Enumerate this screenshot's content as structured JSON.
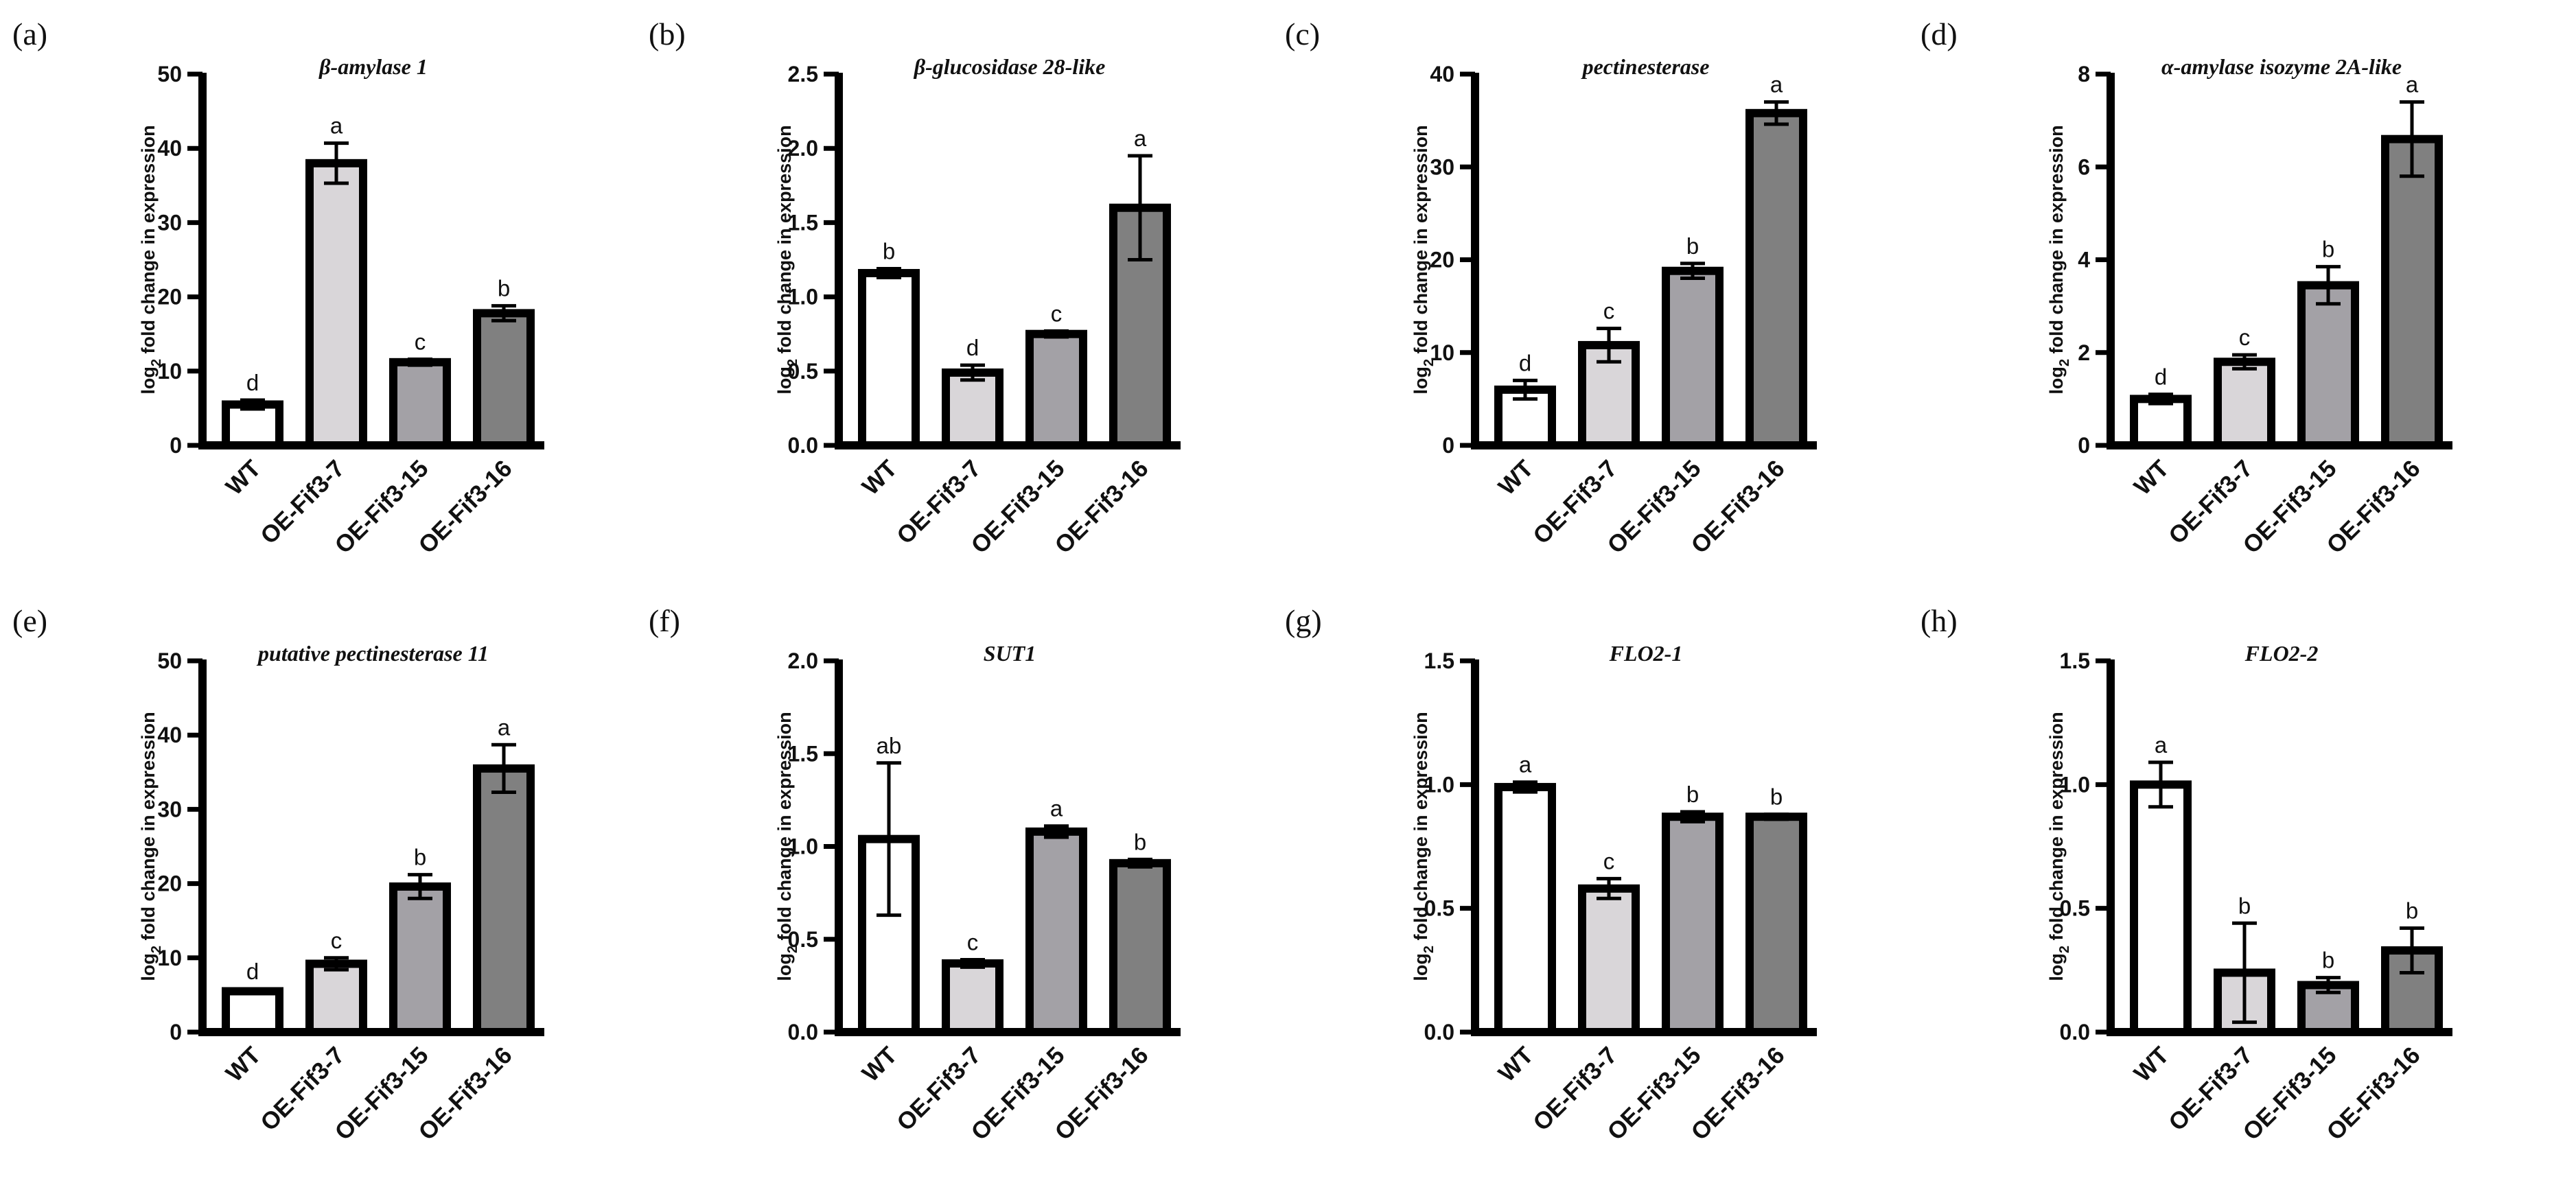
{
  "figure": {
    "panel_style": {
      "bar_colors": [
        "#ffffff",
        "#d9d6d9",
        "#a3a1a6",
        "#808080"
      ],
      "stroke": "#000000"
    },
    "y_axis_label": {
      "prefix": "log",
      "subscript": "2",
      "suffix": " fold change in expression"
    }
  },
  "chart_data": [
    {
      "panel": "(a)",
      "type": "bar",
      "title": "β-amylase 1",
      "categories": [
        "WT",
        "OE-Fif3-7",
        "OE-Fif3-15",
        "OE-Fif3-16"
      ],
      "values": [
        5.5,
        38.0,
        11.2,
        17.8
      ],
      "errors": [
        0.6,
        2.7,
        0.4,
        1.0
      ],
      "significance": [
        "d",
        "a",
        "c",
        "b"
      ],
      "ylim": [
        0,
        50
      ],
      "yticks": [
        "0",
        "10",
        "20",
        "30",
        "40",
        "50"
      ],
      "ylabel": "log2 fold change in expression"
    },
    {
      "panel": "(b)",
      "type": "bar",
      "title": "β-glucosidase 28-like",
      "categories": [
        "WT",
        "OE-Fif3-7",
        "OE-Fif3-15",
        "OE-Fif3-16"
      ],
      "values": [
        1.16,
        0.49,
        0.75,
        1.6
      ],
      "errors": [
        0.03,
        0.05,
        0.02,
        0.35
      ],
      "significance": [
        "b",
        "d",
        "c",
        "a"
      ],
      "ylim": [
        0,
        2.5
      ],
      "yticks": [
        "0.0",
        "0.5",
        "1.0",
        "1.5",
        "2.0",
        "2.5"
      ],
      "ylabel": "log2 fold change in expression"
    },
    {
      "panel": "(c)",
      "type": "bar",
      "title": "pectinesterase",
      "categories": [
        "WT",
        "OE-Fif3-7",
        "OE-Fif3-15",
        "OE-Fif3-16"
      ],
      "values": [
        6.0,
        10.8,
        18.8,
        35.8
      ],
      "errors": [
        1.0,
        1.8,
        0.8,
        1.2
      ],
      "significance": [
        "d",
        "c",
        "b",
        "a"
      ],
      "ylim": [
        0,
        40
      ],
      "yticks": [
        "0",
        "10",
        "20",
        "30",
        "40"
      ],
      "ylabel": "log2 fold change in expression"
    },
    {
      "panel": "(d)",
      "type": "bar",
      "title": "α-amylase isozyme 2A-like",
      "categories": [
        "WT",
        "OE-Fif3-7",
        "OE-Fif3-15",
        "OE-Fif3-16"
      ],
      "values": [
        1.0,
        1.8,
        3.45,
        6.6
      ],
      "errors": [
        0.1,
        0.15,
        0.4,
        0.8
      ],
      "significance": [
        "d",
        "c",
        "b",
        "a"
      ],
      "ylim": [
        0,
        8
      ],
      "yticks": [
        "0",
        "2",
        "4",
        "6",
        "8"
      ],
      "ylabel": "log2 fold change in expression"
    },
    {
      "panel": "(e)",
      "type": "bar",
      "title": "putative pectinesterase 11",
      "categories": [
        "WT",
        "OE-Fif3-7",
        "OE-Fif3-15",
        "OE-Fif3-16"
      ],
      "values": [
        5.5,
        9.2,
        19.6,
        35.5
      ],
      "errors": [
        0.3,
        0.8,
        1.6,
        3.2
      ],
      "significance": [
        "d",
        "c",
        "b",
        "a"
      ],
      "ylim": [
        0,
        50
      ],
      "yticks": [
        "0",
        "10",
        "20",
        "30",
        "40",
        "50"
      ],
      "ylabel": "log2 fold change in expression"
    },
    {
      "panel": "(f)",
      "type": "bar",
      "title": "SUT1",
      "categories": [
        "WT",
        "OE-Fif3-7",
        "OE-Fif3-15",
        "OE-Fif3-16"
      ],
      "values": [
        1.04,
        0.37,
        1.08,
        0.91
      ],
      "errors": [
        0.41,
        0.02,
        0.03,
        0.02
      ],
      "significance": [
        "ab",
        "c",
        "a",
        "b"
      ],
      "ylim": [
        0,
        2.0
      ],
      "yticks": [
        "0.0",
        "0.5",
        "1.0",
        "1.5",
        "2.0"
      ],
      "ylabel": "log2 fold change in expression"
    },
    {
      "panel": "(g)",
      "type": "bar",
      "title": "FLO2-1",
      "categories": [
        "WT",
        "OE-Fif3-7",
        "OE-Fif3-15",
        "OE-Fif3-16"
      ],
      "values": [
        0.99,
        0.58,
        0.87,
        0.87
      ],
      "errors": [
        0.02,
        0.04,
        0.02,
        0.01
      ],
      "significance": [
        "a",
        "c",
        "b",
        "b"
      ],
      "ylim": [
        0,
        1.5
      ],
      "yticks": [
        "0.0",
        "0.5",
        "1.0",
        "1.5"
      ],
      "ylabel": "log2 fold change in expression"
    },
    {
      "panel": "(h)",
      "type": "bar",
      "title": "FLO2-2",
      "categories": [
        "WT",
        "OE-Fif3-7",
        "OE-Fif3-15",
        "OE-Fif3-16"
      ],
      "values": [
        1.0,
        0.24,
        0.19,
        0.33
      ],
      "errors": [
        0.09,
        0.2,
        0.03,
        0.09
      ],
      "significance": [
        "a",
        "b",
        "b",
        "b"
      ],
      "ylim": [
        0,
        1.5
      ],
      "yticks": [
        "0.0",
        "0.5",
        "1.0",
        "1.5"
      ],
      "ylabel": "log2 fold change in expression"
    }
  ]
}
